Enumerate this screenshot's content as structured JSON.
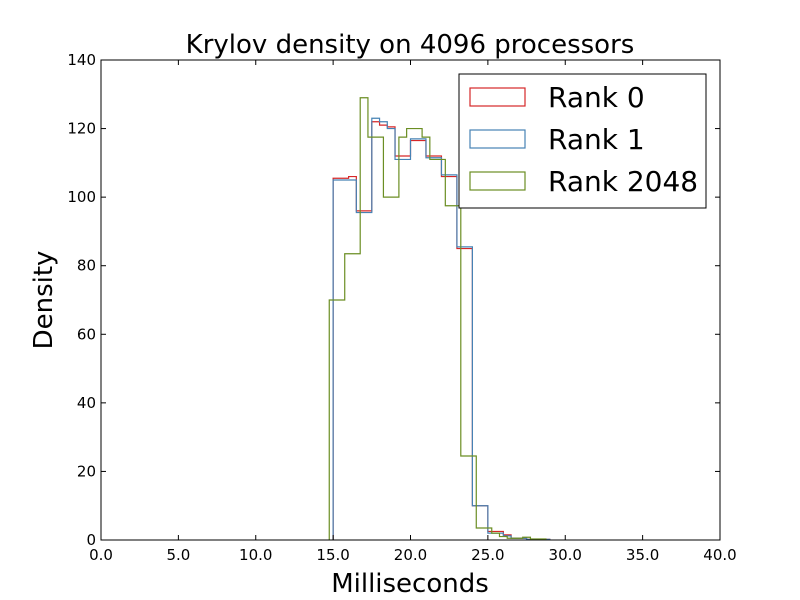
{
  "chart_data": {
    "type": "histogram",
    "title": "Krylov density on 4096 processors",
    "xlabel": "Milliseconds",
    "ylabel": "Density",
    "xlim": [
      0,
      40
    ],
    "ylim": [
      0,
      140
    ],
    "xticks": [
      "0.0",
      "5.0",
      "10.0",
      "15.0",
      "20.0",
      "25.0",
      "30.0",
      "35.0",
      "40.0"
    ],
    "yticks": [
      "0",
      "20",
      "40",
      "60",
      "80",
      "100",
      "120",
      "140"
    ],
    "legend_position": "top-right",
    "grid": false,
    "series": [
      {
        "name": "Rank 0",
        "color": "#d62728",
        "bin_edges": [
          15.0,
          15.5,
          16.0,
          16.5,
          17.0,
          17.5,
          18.0,
          18.5,
          19.0,
          19.5,
          20.0,
          20.5,
          21.0,
          21.5,
          22.0,
          22.5,
          23.0,
          23.5,
          24.0,
          24.5,
          25.0,
          25.5,
          26.0,
          26.5,
          27.0,
          27.5,
          28.0,
          28.5,
          29.0
        ],
        "values": [
          105.5,
          105.5,
          106,
          96,
          96,
          122,
          121,
          120.5,
          112,
          112,
          116.5,
          116.5,
          112,
          112,
          106,
          106,
          85,
          85,
          10,
          10,
          2.5,
          2.5,
          1.5,
          0.5,
          0.5,
          0.2,
          0.2,
          0.2
        ]
      },
      {
        "name": "Rank 1",
        "color": "#4682b4",
        "bin_edges": [
          15.0,
          15.5,
          16.0,
          16.5,
          17.0,
          17.5,
          18.0,
          18.5,
          19.0,
          19.5,
          20.0,
          20.5,
          21.0,
          21.5,
          22.0,
          22.5,
          23.0,
          23.5,
          24.0,
          24.5,
          25.0,
          25.5,
          26.0,
          26.5,
          27.0,
          27.5,
          28.0,
          28.5,
          29.0
        ],
        "values": [
          105,
          105,
          105,
          95.5,
          95.5,
          123,
          122,
          120,
          111,
          111,
          117,
          117,
          111.5,
          111.5,
          106.5,
          106.5,
          85.5,
          85.5,
          10,
          10,
          2,
          2,
          1.2,
          0.5,
          0.5,
          0.2,
          0.2,
          0.2
        ]
      },
      {
        "name": "Rank 2048",
        "color": "#6b8e23",
        "bin_edges": [
          14.75,
          15.25,
          15.75,
          16.25,
          16.75,
          17.25,
          17.75,
          18.25,
          18.75,
          19.25,
          19.75,
          20.25,
          20.75,
          21.25,
          21.75,
          22.25,
          22.75,
          23.25,
          23.75,
          24.25,
          24.75,
          25.25,
          25.75,
          26.25,
          26.75,
          27.25,
          27.75,
          28.25,
          28.75
        ],
        "values": [
          70,
          70,
          83.5,
          83.5,
          129,
          117.5,
          117.5,
          100,
          100,
          117.5,
          120,
          120,
          117.5,
          111,
          111,
          97.5,
          97.5,
          24.5,
          24.5,
          3.5,
          3.5,
          2,
          1,
          0.5,
          0.5,
          0.8,
          0.3,
          0.3
        ]
      }
    ]
  }
}
